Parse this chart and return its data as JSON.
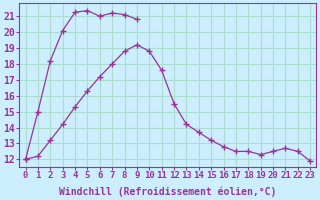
{
  "background_color": "#cceeff",
  "grid_color": "#aaddcc",
  "line_color": "#993399",
  "marker_color": "#993399",
  "xlabel": "Windchill (Refroidissement éolien,°C)",
  "ylabel_ticks": [
    12,
    13,
    14,
    15,
    16,
    17,
    18,
    19,
    20,
    21
  ],
  "xlim": [
    -0.5,
    23.5
  ],
  "ylim": [
    11.5,
    21.8
  ],
  "curve1_x": [
    0,
    1,
    2,
    3,
    4,
    5,
    6,
    7,
    8,
    9
  ],
  "curve1_y": [
    12.0,
    15.0,
    18.2,
    20.1,
    21.25,
    21.35,
    21.0,
    21.2,
    21.1,
    20.8
  ],
  "curve2_x": [
    0,
    1,
    2,
    3,
    4,
    5,
    6,
    7,
    8,
    9,
    10,
    11,
    12,
    13,
    14,
    15,
    16,
    17,
    18,
    19,
    20,
    21,
    22,
    23
  ],
  "curve2_y": [
    12.0,
    12.2,
    13.2,
    14.2,
    15.3,
    16.3,
    17.2,
    18.0,
    18.8,
    19.2,
    18.8,
    17.6,
    15.5,
    14.2,
    13.7,
    13.2,
    12.8,
    12.5,
    12.5,
    12.3,
    12.5,
    12.7,
    12.5,
    11.9
  ],
  "xtick_labels": [
    "0",
    "1",
    "2",
    "3",
    "4",
    "5",
    "6",
    "7",
    "8",
    "9",
    "10",
    "11",
    "12",
    "13",
    "14",
    "15",
    "16",
    "17",
    "18",
    "19",
    "20",
    "21",
    "22",
    "23"
  ],
  "xlabel_fontsize": 7,
  "ytick_fontsize": 7,
  "xtick_fontsize": 6.5
}
